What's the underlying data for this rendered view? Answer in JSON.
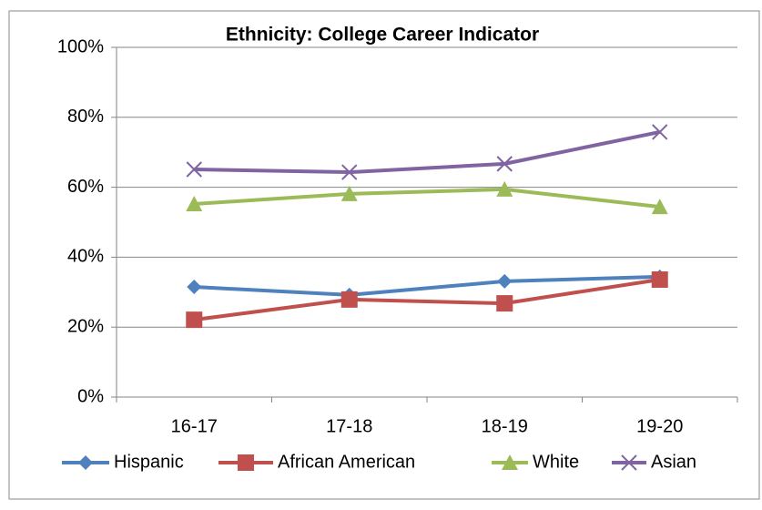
{
  "chart_data": {
    "type": "line",
    "title": "Ethnicity:  College Career Indicator",
    "categories": [
      "16-17",
      "17-18",
      "18-19",
      "19-20"
    ],
    "series": [
      {
        "name": "Hispanic",
        "color": "#4f81bd",
        "marker": "diamond",
        "values": [
          31.5,
          29.2,
          33.1,
          34.4
        ]
      },
      {
        "name": "African American",
        "color": "#c0504d",
        "marker": "square",
        "values": [
          22.1,
          27.9,
          26.8,
          33.6
        ]
      },
      {
        "name": "White",
        "color": "#9bbb59",
        "marker": "triangle",
        "values": [
          55.2,
          58.1,
          59.4,
          54.4
        ]
      },
      {
        "name": "Asian",
        "color": "#8064a2",
        "marker": "x",
        "values": [
          65.1,
          64.3,
          66.7,
          75.8
        ]
      }
    ],
    "ylim": [
      0,
      100
    ],
    "yticks": [
      {
        "value": 0,
        "label": "0%"
      },
      {
        "value": 20,
        "label": "20%"
      },
      {
        "value": 40,
        "label": "40%"
      },
      {
        "value": 60,
        "label": "60%"
      },
      {
        "value": 80,
        "label": "80%"
      },
      {
        "value": 100,
        "label": "100%"
      }
    ],
    "grid": true,
    "legend": "bottom"
  }
}
